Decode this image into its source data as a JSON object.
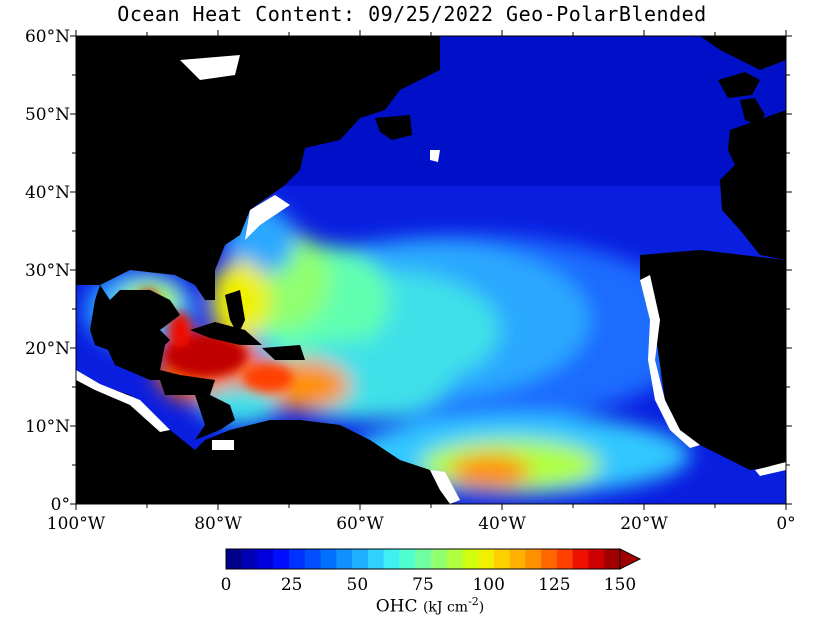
{
  "title": "Ocean Heat Content: 09/25/2022 Geo-PolarBlended",
  "map": {
    "lon_range": [
      -100,
      0
    ],
    "lat_range": [
      0,
      60
    ],
    "lat_ticks": [
      "0°",
      "10°N",
      "20°N",
      "30°N",
      "40°N",
      "50°N",
      "60°N"
    ],
    "lon_ticks": [
      "100°W",
      "80°W",
      "60°W",
      "40°W",
      "20°W",
      "0°"
    ],
    "land_color": "#000000",
    "missing_color": "#ffffff"
  },
  "colorbar": {
    "tick_labels": [
      "0",
      "25",
      "50",
      "75",
      "100",
      "125",
      "150"
    ],
    "range": [
      0,
      150
    ],
    "bins": 25,
    "colors": [
      "#00008b",
      "#0000b4",
      "#0000dc",
      "#0010ff",
      "#0032ff",
      "#0050ff",
      "#0070ff",
      "#1090ff",
      "#20b0ff",
      "#30d0ff",
      "#40f0f0",
      "#50ffd0",
      "#70ffa0",
      "#90ff70",
      "#b0ff40",
      "#d0ff10",
      "#f0f000",
      "#ffd000",
      "#ffb000",
      "#ff9000",
      "#ff6800",
      "#ff4000",
      "#ee1000",
      "#cc0000",
      "#a00000"
    ],
    "label": "OHC",
    "units": "(kJ cm",
    "units_exp": "-2",
    "units_close": ")"
  }
}
